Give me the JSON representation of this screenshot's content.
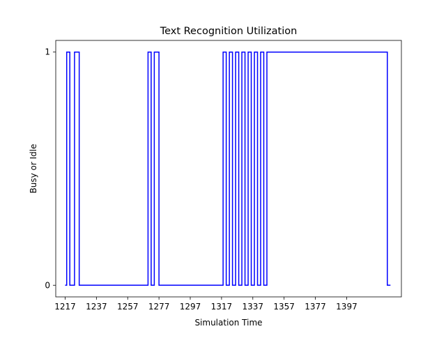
{
  "chart_data": {
    "type": "line",
    "drawstyle": "step",
    "title": "Text Recognition Utilization",
    "xlabel": "Simulation Time",
    "ylabel": "Busy or Idle",
    "xlim": [
      1211,
      1432
    ],
    "ylim": [
      -0.05,
      1.05
    ],
    "x_ticks": [
      1217,
      1237,
      1257,
      1277,
      1297,
      1317,
      1337,
      1357,
      1377,
      1397
    ],
    "y_ticks": [
      0,
      1
    ],
    "grid": false,
    "legend": "none",
    "series": [
      {
        "color": "#0000ff",
        "x": [
          1217,
          1218,
          1220,
          1223,
          1226,
          1270,
          1272,
          1274,
          1277,
          1318,
          1320,
          1322,
          1324,
          1326,
          1328,
          1330,
          1332,
          1334,
          1336,
          1338,
          1340,
          1342,
          1344,
          1346,
          1423,
          1425
        ],
        "y": [
          0,
          1,
          0,
          1,
          0,
          1,
          0,
          1,
          0,
          1,
          0,
          1,
          0,
          1,
          0,
          1,
          0,
          1,
          0,
          1,
          0,
          1,
          0,
          1,
          0,
          0
        ]
      }
    ]
  }
}
